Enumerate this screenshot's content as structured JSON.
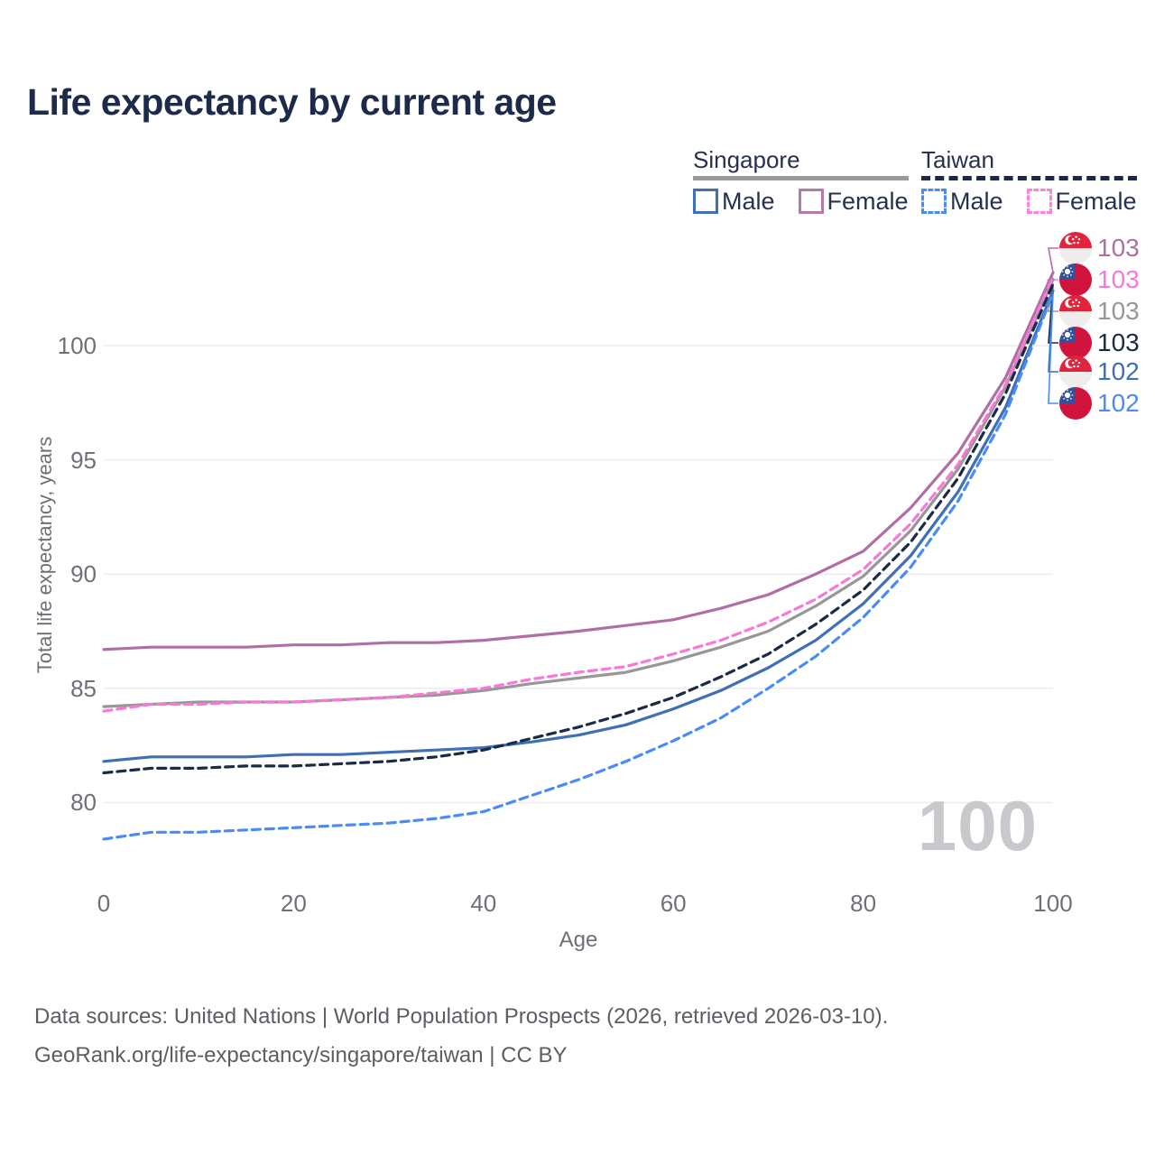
{
  "title": "Life expectancy by current age",
  "legend": {
    "groups": [
      {
        "id": "singapore",
        "label": "Singapore",
        "underline_style": "solid",
        "underline_color": "#9a9a9a",
        "items": [
          {
            "label": "Male",
            "color": "#3f6fb5",
            "dashed": false
          },
          {
            "label": "Female",
            "color": "#b679a8",
            "dashed": false
          }
        ]
      },
      {
        "id": "taiwan",
        "label": "Taiwan",
        "underline_style": "dashed",
        "underline_color": "#1b2949",
        "items": [
          {
            "label": "Male",
            "color": "#4a8cf4",
            "dashed": true
          },
          {
            "label": "Female",
            "color": "#fb84dc",
            "dashed": true
          }
        ]
      }
    ]
  },
  "watermark_age": "100",
  "footer": {
    "line1": "Data sources: United Nations | World Population Prospects (2026, retrieved 2026-03-10).",
    "line2": "GeoRank.org/life-expectancy/singapore/taiwan | CC BY"
  },
  "colors": {
    "title_text": "#1c2b4a",
    "axis_text": "#6f7077",
    "gridline": "#ececef",
    "watermark": "#c8c8cd",
    "footer_text": "#5d5e64"
  },
  "chart_data": {
    "type": "line",
    "title": "Life expectancy by current age",
    "xlabel": "Age",
    "ylabel": "Total life expectancy, years",
    "x_ticks": [
      0,
      20,
      40,
      60,
      80,
      100
    ],
    "y_ticks": [
      80,
      85,
      90,
      95,
      100
    ],
    "xlim": [
      0,
      100
    ],
    "ylim": [
      77.5,
      104
    ],
    "grid": "horizontal-only",
    "legend_position": "top-right",
    "x": [
      0,
      5,
      10,
      15,
      20,
      25,
      30,
      35,
      40,
      45,
      50,
      55,
      60,
      65,
      70,
      75,
      80,
      85,
      90,
      95,
      100
    ],
    "series": [
      {
        "id": "singapore-female",
        "country": "singapore",
        "sex": "female",
        "color": "#b06fa4",
        "dashed": false,
        "end_label": "103",
        "values": [
          86.7,
          86.8,
          86.8,
          86.8,
          86.9,
          86.9,
          87.0,
          87.0,
          87.1,
          87.3,
          87.5,
          87.75,
          88.0,
          88.5,
          89.1,
          90.0,
          91.0,
          92.9,
          95.3,
          98.6,
          103.2
        ]
      },
      {
        "id": "taiwan-female",
        "country": "taiwan",
        "sex": "female",
        "color": "#f878d8",
        "dashed": true,
        "end_label": "103",
        "values": [
          84.0,
          84.3,
          84.3,
          84.4,
          84.4,
          84.5,
          84.6,
          84.8,
          85.0,
          85.4,
          85.7,
          85.95,
          86.5,
          87.1,
          87.9,
          88.9,
          90.2,
          92.2,
          94.8,
          98.3,
          103.0
        ]
      },
      {
        "id": "singapore-total",
        "country": "singapore",
        "sex": "total",
        "color": "#979797",
        "dashed": false,
        "end_label": "103",
        "values": [
          84.2,
          84.3,
          84.4,
          84.4,
          84.4,
          84.5,
          84.6,
          84.7,
          84.9,
          85.2,
          85.45,
          85.7,
          86.2,
          86.8,
          87.5,
          88.6,
          89.9,
          91.9,
          94.6,
          98.2,
          102.9
        ]
      },
      {
        "id": "taiwan-total",
        "country": "taiwan",
        "sex": "total",
        "color": "#1b2a45",
        "dashed": true,
        "end_label": "103",
        "values": [
          81.3,
          81.5,
          81.5,
          81.6,
          81.6,
          81.7,
          81.8,
          82.0,
          82.3,
          82.8,
          83.3,
          83.9,
          84.6,
          85.5,
          86.5,
          87.8,
          89.3,
          91.4,
          94.2,
          97.9,
          102.7
        ]
      },
      {
        "id": "singapore-male",
        "country": "singapore",
        "sex": "male",
        "color": "#3f6fb5",
        "dashed": false,
        "end_label": "102",
        "values": [
          81.8,
          82.0,
          82.0,
          82.0,
          82.1,
          82.1,
          82.2,
          82.3,
          82.4,
          82.65,
          82.95,
          83.4,
          84.1,
          84.9,
          85.9,
          87.1,
          88.7,
          90.8,
          93.6,
          97.3,
          102.4
        ]
      },
      {
        "id": "taiwan-male",
        "country": "taiwan",
        "sex": "male",
        "color": "#4a8cf4",
        "dashed": true,
        "end_label": "102",
        "values": [
          78.4,
          78.7,
          78.7,
          78.8,
          78.9,
          79.0,
          79.1,
          79.3,
          79.6,
          80.3,
          81.0,
          81.8,
          82.7,
          83.7,
          85.0,
          86.4,
          88.1,
          90.3,
          93.2,
          97.0,
          102.3
        ]
      }
    ]
  }
}
